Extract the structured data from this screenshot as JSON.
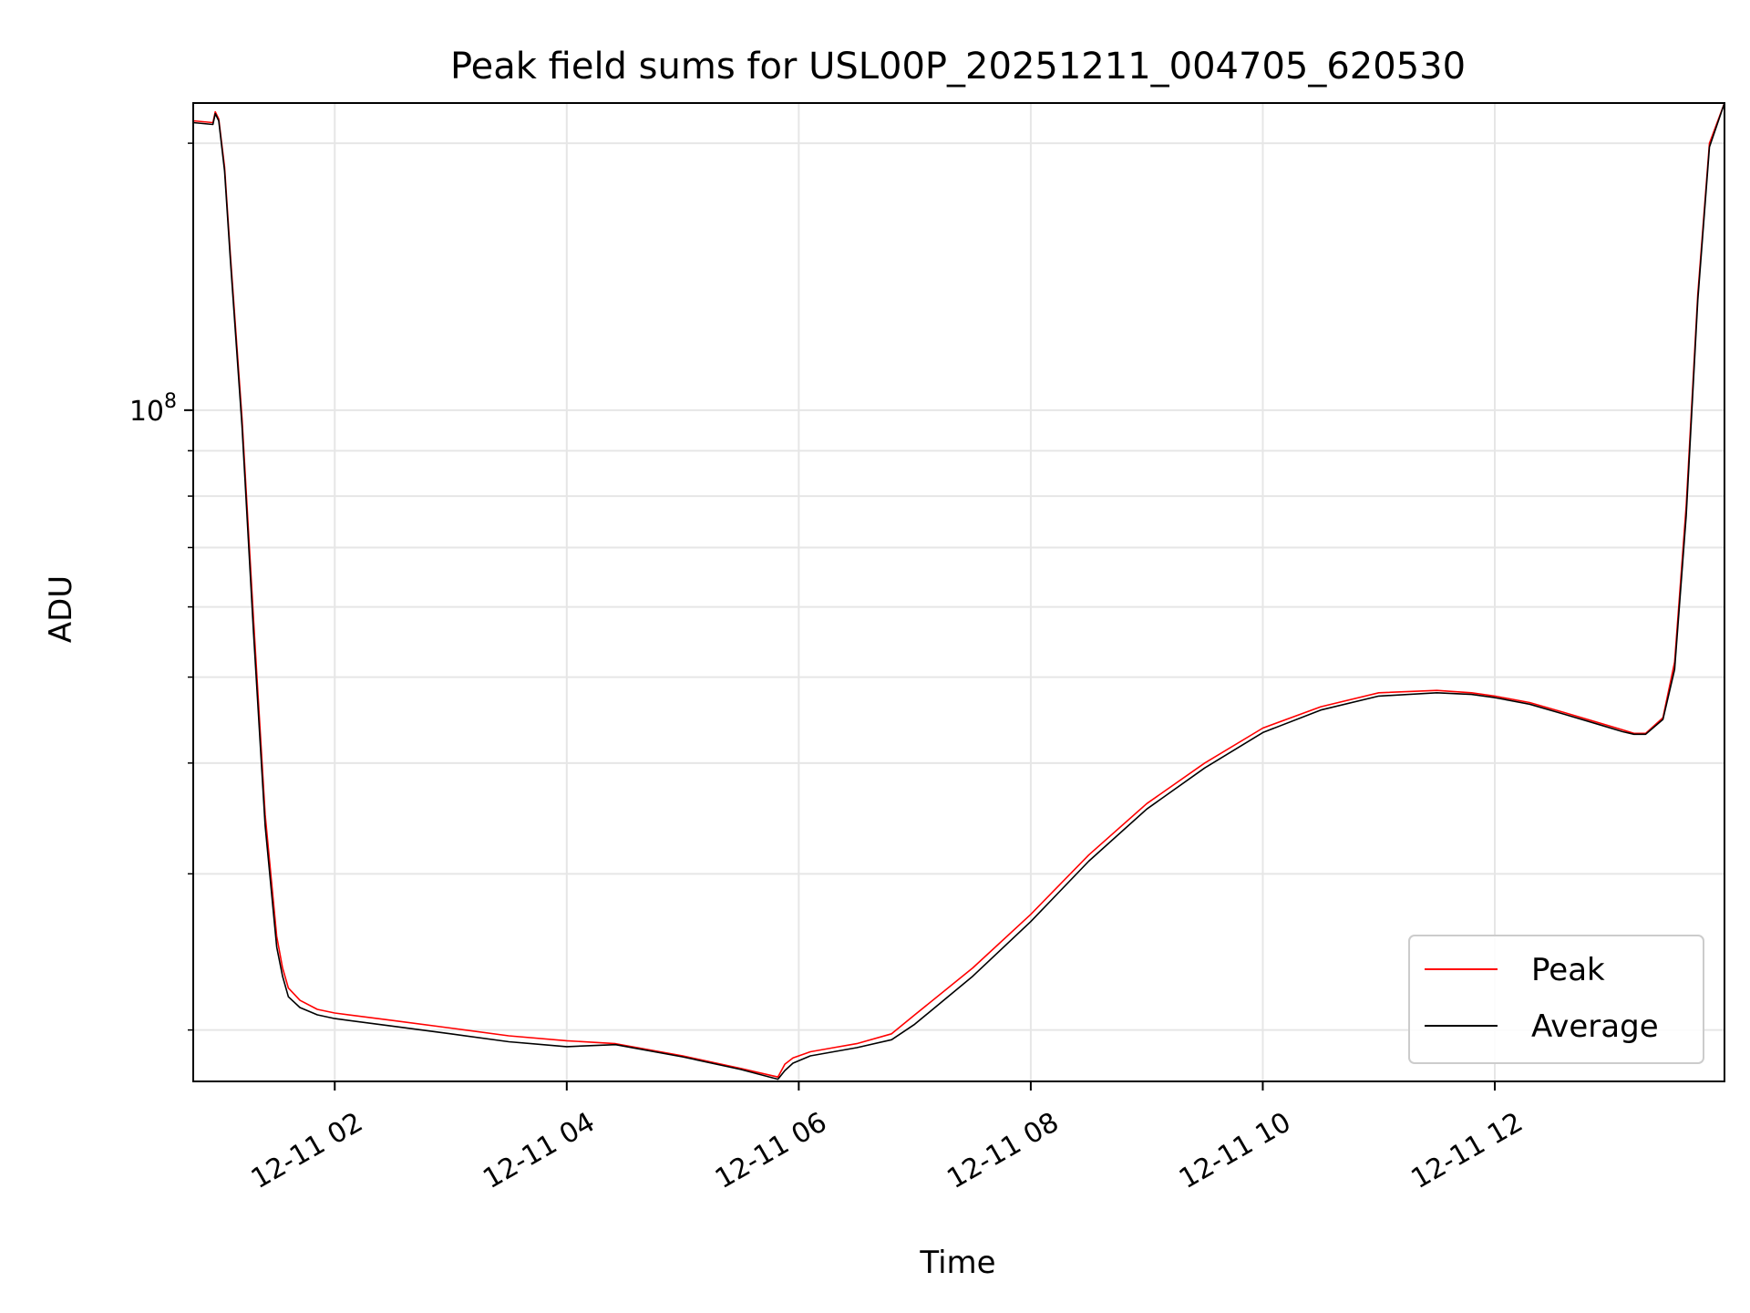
{
  "chart_data": {
    "type": "line",
    "title": "Peak field sums for USL00P_20251211_004705_620530",
    "xlabel": "Time",
    "ylabel": "ADU",
    "x_tick_labels": [
      "12-11 02",
      "12-11 04",
      "12-11 06",
      "12-11 08",
      "12-11 10",
      "12-11 12"
    ],
    "x_tick_hours": [
      2,
      4,
      6,
      8,
      10,
      12
    ],
    "xlim_hours": [
      0.78,
      13.98
    ],
    "y_scale": "log",
    "ylim": [
      17500000,
      222000000
    ],
    "y_major_label": {
      "value": 100000000,
      "base": "10",
      "exp": "8"
    },
    "y_minor_ticks": [
      20000000,
      30000000,
      40000000,
      50000000,
      60000000,
      70000000,
      80000000,
      90000000,
      200000000
    ],
    "grid": true,
    "legend": {
      "position": "bottom-right",
      "entries": [
        "Peak",
        "Average"
      ]
    },
    "colors": {
      "Peak": "#ff0000",
      "Average": "#000000"
    },
    "series": [
      {
        "name": "Peak",
        "x_hours": [
          0.78,
          0.95,
          0.97,
          1.0,
          1.05,
          1.1,
          1.2,
          1.3,
          1.4,
          1.5,
          1.55,
          1.6,
          1.7,
          1.85,
          2.0,
          2.5,
          3.0,
          3.5,
          4.0,
          4.42,
          5.0,
          5.5,
          5.82,
          5.88,
          5.95,
          6.1,
          6.3,
          6.5,
          6.8,
          7.0,
          7.5,
          8.0,
          8.5,
          9.0,
          9.5,
          10.0,
          10.5,
          11.0,
          11.5,
          11.8,
          12.0,
          12.3,
          12.6,
          12.9,
          13.1,
          13.2,
          13.3,
          13.45,
          13.55,
          13.65,
          13.75,
          13.85,
          13.98
        ],
        "values": [
          212000000,
          211000000,
          217000000,
          213000000,
          188000000,
          150000000,
          98000000,
          58000000,
          35000000,
          25500000,
          23500000,
          22300000,
          21600000,
          21100000,
          20900000,
          20500000,
          20100000,
          19700000,
          19450000,
          19300000,
          18700000,
          18100000,
          17700000,
          18300000,
          18600000,
          18900000,
          19100000,
          19300000,
          19800000,
          20800000,
          23500000,
          27000000,
          31500000,
          36000000,
          40000000,
          43800000,
          46300000,
          48000000,
          48300000,
          48000000,
          47600000,
          46800000,
          45600000,
          44400000,
          43600000,
          43200000,
          43200000,
          45000000,
          52000000,
          78000000,
          135000000,
          200000000,
          222000000
        ]
      },
      {
        "name": "Average",
        "x_hours": [
          0.78,
          0.95,
          0.97,
          1.0,
          1.05,
          1.1,
          1.2,
          1.3,
          1.4,
          1.5,
          1.55,
          1.6,
          1.7,
          1.85,
          2.0,
          2.5,
          3.0,
          3.5,
          4.0,
          4.42,
          5.0,
          5.5,
          5.82,
          5.88,
          5.95,
          6.1,
          6.3,
          6.5,
          6.8,
          7.0,
          7.5,
          8.0,
          8.5,
          9.0,
          9.5,
          10.0,
          10.5,
          11.0,
          11.5,
          11.8,
          12.0,
          12.3,
          12.6,
          12.9,
          13.1,
          13.2,
          13.3,
          13.45,
          13.55,
          13.65,
          13.75,
          13.85,
          13.98
        ],
        "values": [
          211000000,
          210000000,
          216000000,
          212000000,
          186000000,
          148000000,
          96000000,
          56000000,
          34000000,
          24800000,
          23000000,
          21800000,
          21200000,
          20800000,
          20600000,
          20200000,
          19800000,
          19400000,
          19150000,
          19250000,
          18650000,
          18050000,
          17600000,
          18000000,
          18350000,
          18700000,
          18900000,
          19100000,
          19500000,
          20300000,
          23000000,
          26500000,
          31000000,
          35500000,
          39500000,
          43300000,
          45900000,
          47600000,
          48000000,
          47800000,
          47400000,
          46600000,
          45400000,
          44200000,
          43400000,
          43100000,
          43100000,
          44800000,
          51000000,
          76000000,
          133000000,
          198000000,
          222000000
        ]
      }
    ]
  }
}
